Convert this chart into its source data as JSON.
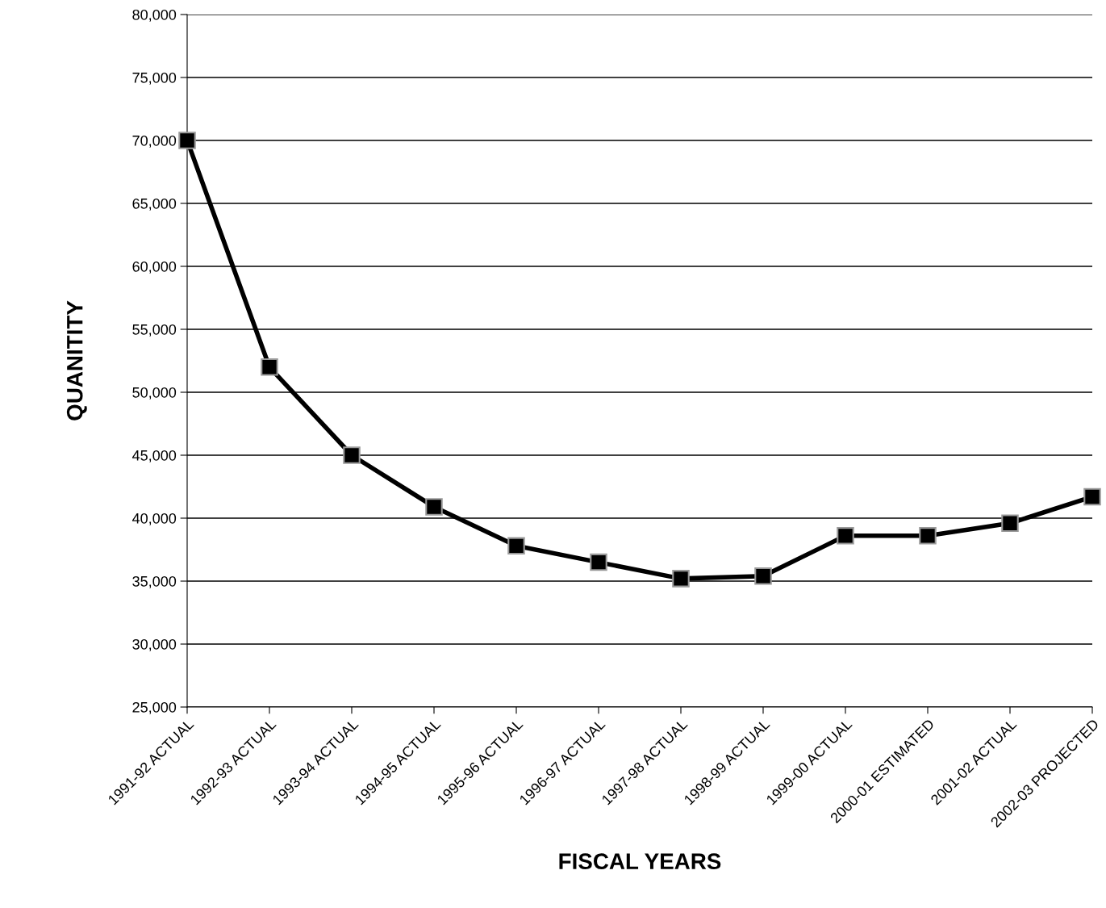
{
  "chart_data": {
    "type": "line",
    "xlabel": "FISCAL YEARS",
    "ylabel": "QUANITITY",
    "categories": [
      "1991-92 ACTUAL",
      "1992-93 ACTUAL",
      "1993-94 ACTUAL",
      "1994-95 ACTUAL",
      "1995-96 ACTUAL",
      "1996-97 ACTUAL",
      "1997-98 ACTUAL",
      "1998-99 ACTUAL",
      "1999-00 ACTUAL",
      "2000-01 ESTIMATED",
      "2001-02 ACTUAL",
      "2002-03 PROJECTED"
    ],
    "series": [
      {
        "color": "#000000",
        "values": [
          70000,
          52000,
          45000,
          40900,
          37800,
          36500,
          35200,
          35400,
          38600,
          38600,
          39600,
          41700
        ]
      }
    ],
    "ylim": [
      25000,
      80000
    ],
    "yticks": [
      {
        "value": 25000,
        "label": "25,000"
      },
      {
        "value": 30000,
        "label": "30,000"
      },
      {
        "value": 35000,
        "label": "35,000"
      },
      {
        "value": 40000,
        "label": "40,000"
      },
      {
        "value": 45000,
        "label": "45,000"
      },
      {
        "value": 50000,
        "label": "50,000"
      },
      {
        "value": 55000,
        "label": "55,000"
      },
      {
        "value": 60000,
        "label": "60,000"
      },
      {
        "value": 65000,
        "label": "65,000"
      },
      {
        "value": 70000,
        "label": "70,000"
      },
      {
        "value": 75000,
        "label": "75,000"
      },
      {
        "value": 80000,
        "label": "80,000"
      }
    ],
    "grid": "y",
    "marker": "square",
    "line_style": "solid",
    "legend": false
  }
}
